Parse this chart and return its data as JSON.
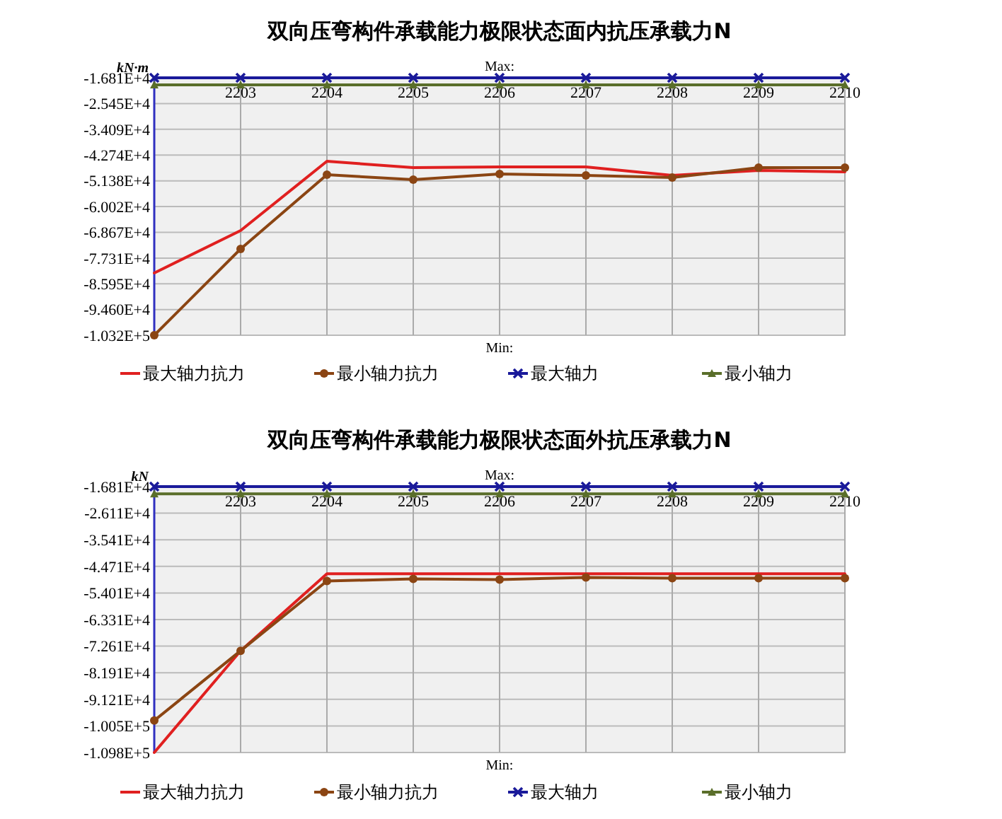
{
  "chart_data": [
    {
      "type": "line",
      "title": "双向压弯构件承载能力极限状态面内抗压承载力N",
      "ylabel": "kN·m",
      "categories": [
        null,
        "2203",
        "2204",
        "2205",
        "2206",
        "2207",
        "2208",
        "2209",
        "2210"
      ],
      "series": [
        {
          "name": "最大轴力抗力",
          "color": "#e02020",
          "marker": "none",
          "values": [
            -82310,
            -68080,
            -44815,
            -46950,
            -46710,
            -46710,
            -49560,
            -47900,
            -48380
          ]
        },
        {
          "name": "最小轴力抗力",
          "color": "#8b4513",
          "marker": "circle",
          "values": [
            -103200,
            -74250,
            -49330,
            -50990,
            -49090,
            -49560,
            -50270,
            -46950,
            -46950
          ]
        },
        {
          "name": "最大轴力",
          "color": "#1a1a9a",
          "marker": "cross",
          "values": [
            -16810,
            -16810,
            -16810,
            -16810,
            -16810,
            -16810,
            -16810,
            -16810,
            -16810
          ]
        },
        {
          "name": "最小轴力",
          "color": "#5a6e2a",
          "marker": "triangle",
          "values": [
            -19180,
            -19180,
            -19180,
            -19180,
            -19180,
            -19180,
            -19180,
            -19180,
            -19180
          ]
        }
      ],
      "ylim": [
        -103200,
        -16810
      ],
      "yticks": [
        {
          "value": -16810,
          "label": "-1.681E+4"
        },
        {
          "value": -25450,
          "label": "-2.545E+4"
        },
        {
          "value": -34090,
          "label": "-3.409E+4"
        },
        {
          "value": -42740,
          "label": "-4.274E+4"
        },
        {
          "value": -51380,
          "label": "-5.138E+4"
        },
        {
          "value": -60020,
          "label": "-6.002E+4"
        },
        {
          "value": -68670,
          "label": "-6.867E+4"
        },
        {
          "value": -77310,
          "label": "-7.731E+4"
        },
        {
          "value": -85950,
          "label": "-8.595E+4"
        },
        {
          "value": -94600,
          "label": "-9.460E+4"
        },
        {
          "value": -103200,
          "label": "-1.032E+5"
        }
      ],
      "grid": true,
      "legend": "bottom",
      "annotations": [
        "Max:",
        "Min:"
      ]
    },
    {
      "type": "line",
      "title": "双向压弯构件承载能力极限状态面外抗压承载力N",
      "ylabel": "kN",
      "categories": [
        null,
        "2203",
        "2204",
        "2205",
        "2206",
        "2207",
        "2208",
        "2209",
        "2210"
      ],
      "series": [
        {
          "name": "最大轴力抗力",
          "color": "#e02020",
          "marker": "none",
          "values": [
            -109800,
            -74230,
            -47300,
            -47300,
            -47300,
            -47300,
            -47300,
            -47300,
            -47300
          ]
        },
        {
          "name": "最小轴力抗力",
          "color": "#8b4513",
          "marker": "circle",
          "values": [
            -98620,
            -74230,
            -49840,
            -49080,
            -49330,
            -48570,
            -48830,
            -48830,
            -48830
          ]
        },
        {
          "name": "最大轴力",
          "color": "#1a1a9a",
          "marker": "cross",
          "values": [
            -16810,
            -16810,
            -16810,
            -16810,
            -16810,
            -16810,
            -16810,
            -16810,
            -16810
          ]
        },
        {
          "name": "最小轴力",
          "color": "#5a6e2a",
          "marker": "triangle",
          "values": [
            -19350,
            -19350,
            -19350,
            -19350,
            -19350,
            -19350,
            -19350,
            -19350,
            -19350
          ]
        }
      ],
      "ylim": [
        -109800,
        -16810
      ],
      "yticks": [
        {
          "value": -16810,
          "label": "-1.681E+4"
        },
        {
          "value": -26110,
          "label": "-2.611E+4"
        },
        {
          "value": -35410,
          "label": "-3.541E+4"
        },
        {
          "value": -44710,
          "label": "-4.471E+4"
        },
        {
          "value": -54010,
          "label": "-5.401E+4"
        },
        {
          "value": -63310,
          "label": "-6.331E+4"
        },
        {
          "value": -72610,
          "label": "-7.261E+4"
        },
        {
          "value": -81910,
          "label": "-8.191E+4"
        },
        {
          "value": -91210,
          "label": "-9.121E+4"
        },
        {
          "value": -100500,
          "label": "-1.005E+5"
        },
        {
          "value": -109800,
          "label": "-1.098E+5"
        }
      ],
      "grid": true,
      "legend": "bottom",
      "annotations": [
        "Max:",
        "Min:"
      ]
    }
  ]
}
